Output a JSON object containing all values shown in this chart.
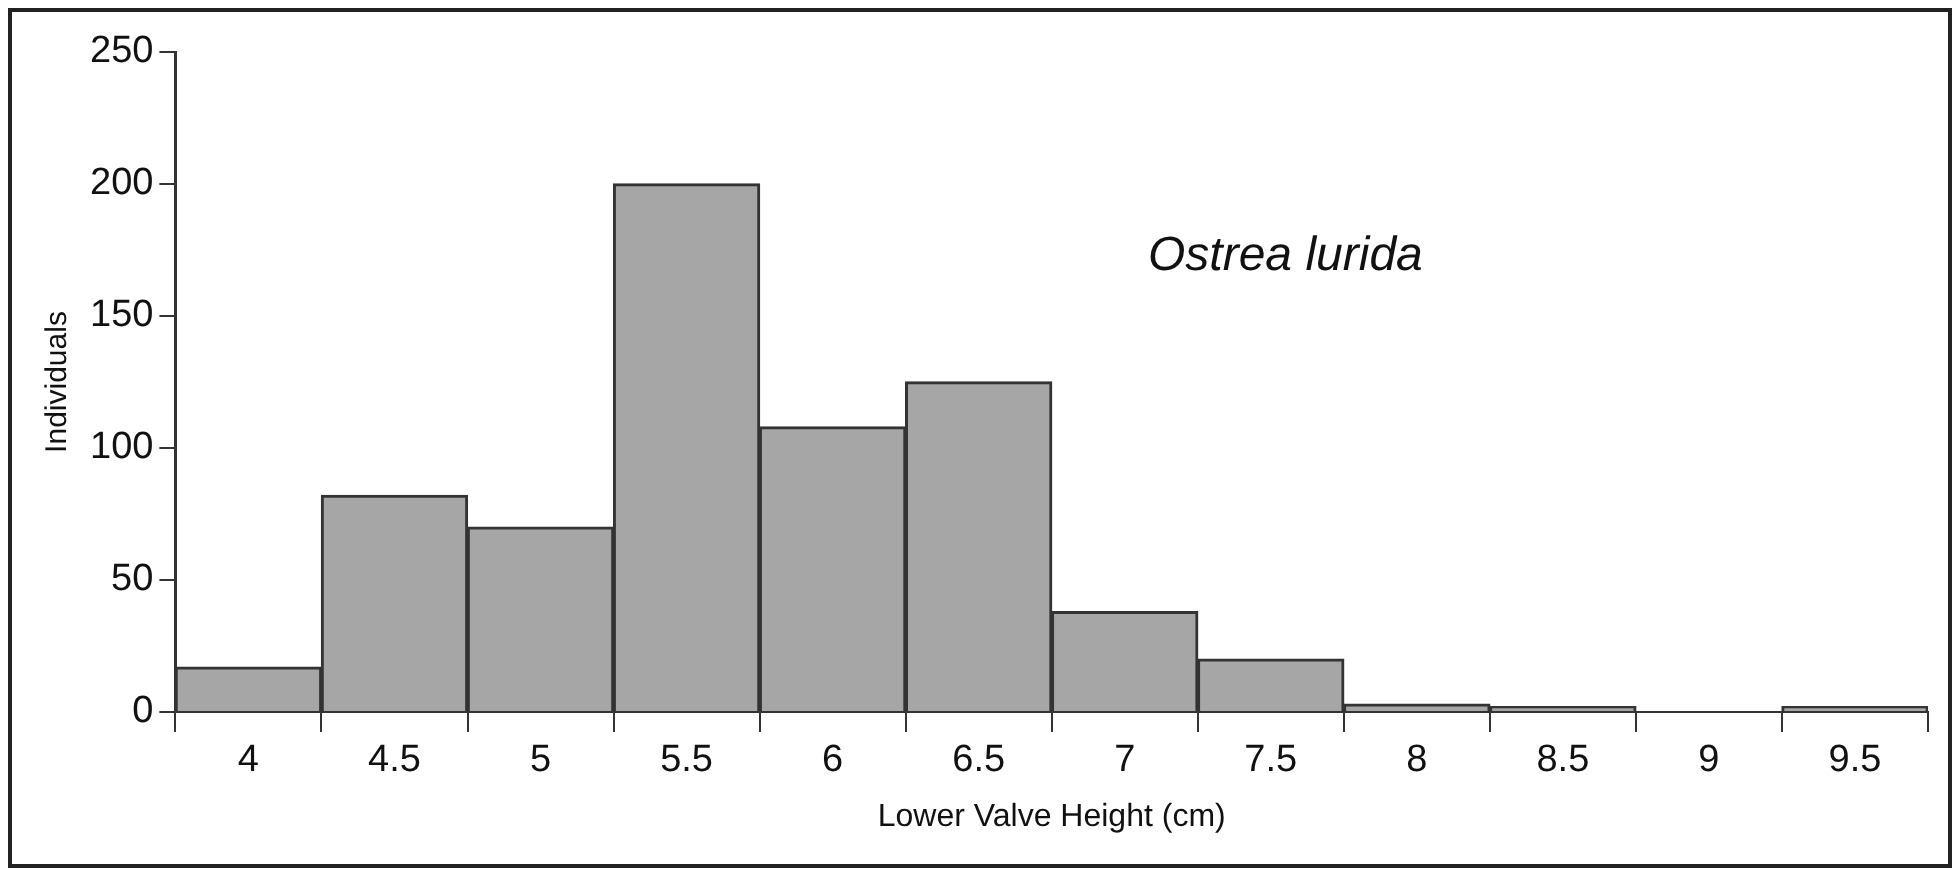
{
  "chart_data": {
    "type": "bar",
    "categories": [
      "4",
      "4.5",
      "5",
      "5.5",
      "6",
      "6.5",
      "7",
      "7.5",
      "8",
      "8.5",
      "9",
      "9.5"
    ],
    "values": [
      17,
      82,
      70,
      200,
      108,
      125,
      38,
      20,
      3,
      2,
      0,
      2
    ],
    "color": "#a6a6a6",
    "xlabel": "Lower Valve Height (cm)",
    "ylabel": "Individuals",
    "ylim": [
      0,
      250
    ],
    "yticks": [
      0,
      50,
      100,
      150,
      200,
      250
    ],
    "annotations": [
      "Ostrea lurida"
    ],
    "grid": false,
    "legend": false
  }
}
